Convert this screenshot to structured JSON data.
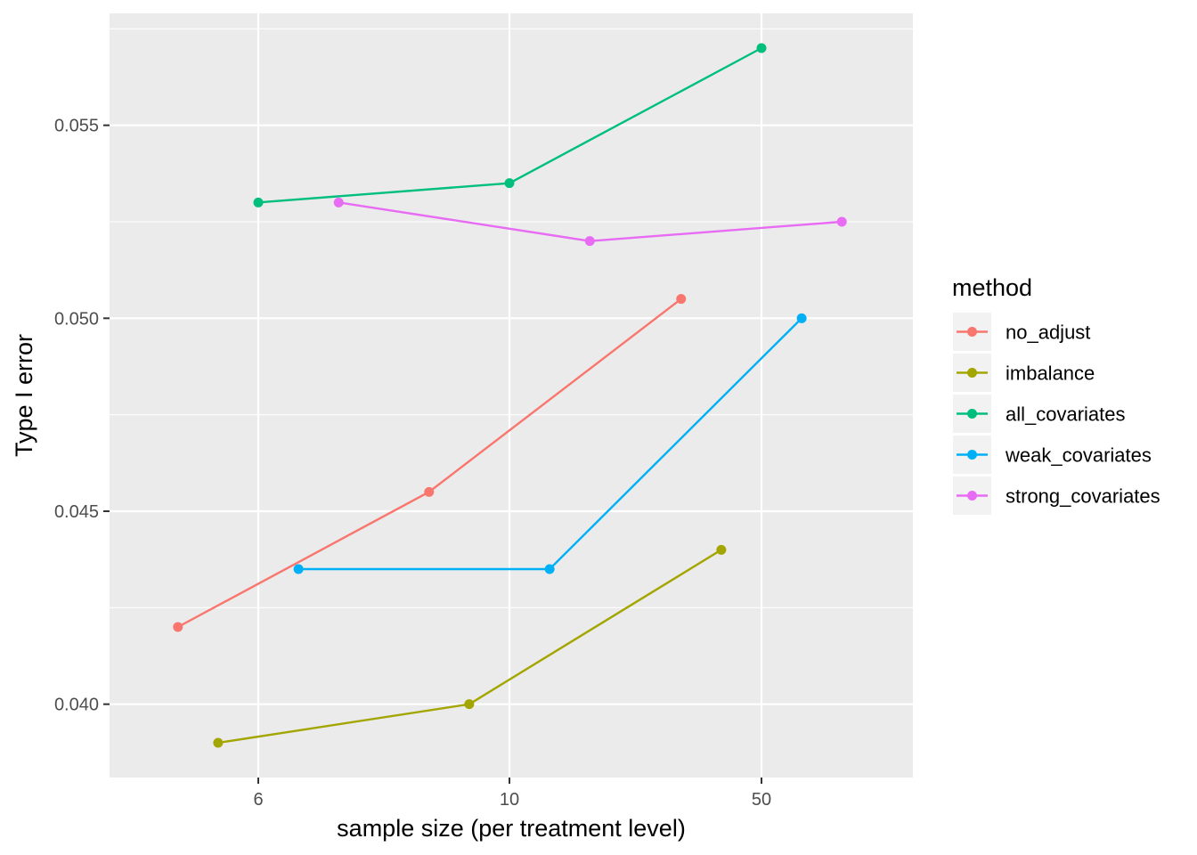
{
  "chart_data": {
    "type": "line",
    "title": "",
    "xlabel": "sample size (per treatment level)",
    "ylabel": "Type I error",
    "x_ticks": [
      "6",
      "10",
      "50"
    ],
    "y_ticks": [
      "0.040",
      "0.045",
      "0.050",
      "0.055"
    ],
    "ylim": [
      0.0381,
      0.0579
    ],
    "grid": true,
    "legend": {
      "title": "method",
      "placement": "right"
    },
    "series": [
      {
        "name": "no_adjust",
        "color": "#F8766D",
        "points": [
          [
            "6",
            -0.32,
            0.042
          ],
          [
            "10",
            -0.32,
            0.0455
          ],
          [
            "50",
            -0.32,
            0.0505
          ]
        ]
      },
      {
        "name": "imbalance",
        "color": "#A3A500",
        "points": [
          [
            "6",
            -0.16,
            0.039
          ],
          [
            "10",
            -0.16,
            0.04
          ],
          [
            "50",
            -0.16,
            0.044
          ]
        ]
      },
      {
        "name": "all_covariates",
        "color": "#00BF7D",
        "points": [
          [
            "6",
            0.0,
            0.053
          ],
          [
            "10",
            0.0,
            0.0535
          ],
          [
            "50",
            0.0,
            0.057
          ]
        ]
      },
      {
        "name": "weak_covariates",
        "color": "#00B0F6",
        "points": [
          [
            "6",
            0.16,
            0.0435
          ],
          [
            "10",
            0.16,
            0.0435
          ],
          [
            "50",
            0.16,
            0.05
          ]
        ]
      },
      {
        "name": "strong_covariates",
        "color": "#E76BF3",
        "points": [
          [
            "6",
            0.32,
            0.053
          ],
          [
            "10",
            0.32,
            0.052
          ],
          [
            "50",
            0.32,
            0.0525
          ]
        ]
      }
    ]
  }
}
